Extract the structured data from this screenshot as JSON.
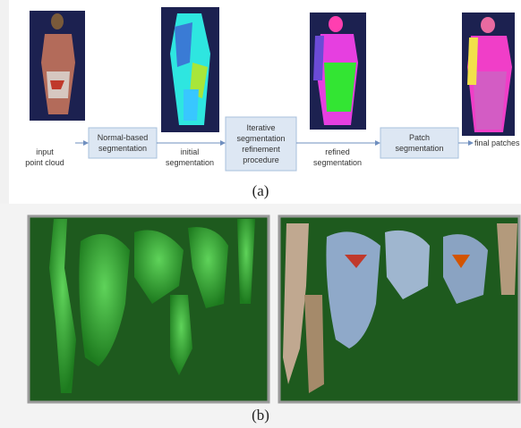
{
  "figure": {
    "panel_a": {
      "stages": [
        {
          "lines": [
            "input",
            "point cloud"
          ]
        },
        {
          "lines": [
            "initial",
            "segmentation"
          ]
        },
        {
          "lines": [
            "refined",
            "segmentation"
          ]
        },
        {
          "lines": [
            "final patches"
          ]
        }
      ],
      "processes": [
        {
          "lines": [
            "Normal-based",
            "segmentation"
          ]
        },
        {
          "lines": [
            "Iterative",
            "segmentation",
            "refinement",
            "procedure"
          ]
        },
        {
          "lines": [
            "Patch",
            "segmentation"
          ]
        }
      ],
      "caption": "(a)"
    },
    "panel_b": {
      "caption": "(b)"
    }
  }
}
